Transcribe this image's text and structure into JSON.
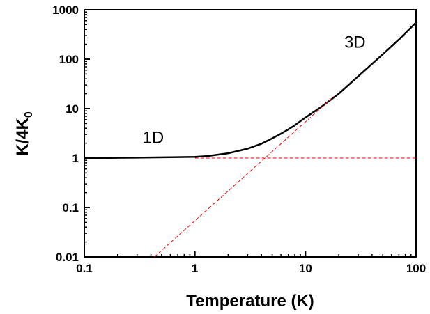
{
  "chart_data": {
    "type": "line",
    "title": "",
    "xlabel": "Temperature (K)",
    "ylabel_main": "K/4K",
    "ylabel_sub": "0",
    "x_scale": "log",
    "y_scale": "log",
    "xlim": [
      0.1,
      100
    ],
    "ylim": [
      0.01,
      1000
    ],
    "x_ticks": [
      {
        "value": 0.1,
        "label": "0.1"
      },
      {
        "value": 1,
        "label": "1"
      },
      {
        "value": 10,
        "label": "10"
      },
      {
        "value": 100,
        "label": "100"
      }
    ],
    "y_ticks": [
      {
        "value": 0.01,
        "label": "0.01"
      },
      {
        "value": 0.1,
        "label": "0.1"
      },
      {
        "value": 1,
        "label": "1"
      },
      {
        "value": 10,
        "label": "10"
      },
      {
        "value": 100,
        "label": "100"
      },
      {
        "value": 1000,
        "label": "1000"
      }
    ],
    "grid": false,
    "legend": "none",
    "series": [
      {
        "style": "solid",
        "color": "#000000",
        "x": [
          0.1,
          0.3,
          0.6,
          1.0,
          1.3,
          2.0,
          3.0,
          4.0,
          5.0,
          6.0,
          7.0,
          8.0,
          10.0,
          14.0,
          20.0,
          30.0,
          50.0,
          70.0,
          100.0
        ],
        "y": [
          1.0,
          1.02,
          1.04,
          1.06,
          1.1,
          1.25,
          1.55,
          1.95,
          2.5,
          3.1,
          3.8,
          4.6,
          6.6,
          11.0,
          20.0,
          45.0,
          125.0,
          250.0,
          550.0
        ]
      },
      {
        "style": "dashed",
        "color": "#ff0000",
        "x": [
          1.0,
          100.0
        ],
        "y": [
          1.0,
          1.0
        ]
      },
      {
        "style": "dashed",
        "color": "#ff0000",
        "x": [
          0.43,
          18.0
        ],
        "y": [
          0.01,
          17.5
        ]
      }
    ],
    "annotations": [
      {
        "text": "1D",
        "x": 0.42,
        "y": 2.0
      },
      {
        "text": "3D",
        "x": 28,
        "y": 170
      }
    ]
  }
}
